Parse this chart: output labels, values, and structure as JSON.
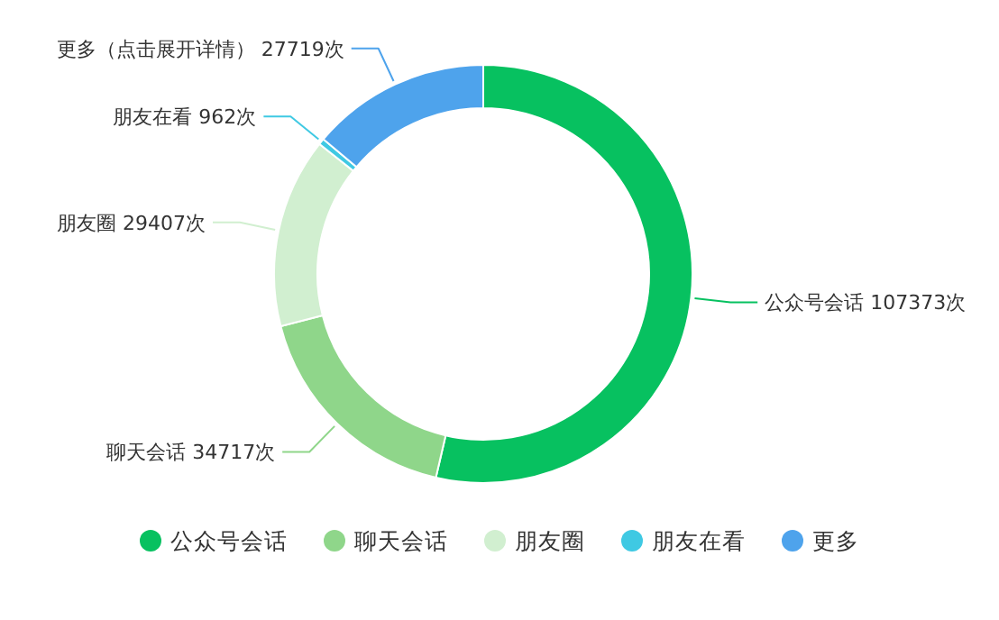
{
  "chart_data": {
    "type": "donut",
    "categories": [
      "公众号会话",
      "聊天会话",
      "朋友圈",
      "朋友在看",
      "更多"
    ],
    "values": [
      107373,
      34717,
      29407,
      962,
      27719
    ],
    "colors": [
      "#07c160",
      "#8fd68a",
      "#d1efd0",
      "#3fc9e3",
      "#4ea3ec"
    ],
    "value_labels": [
      "公众号会话 107373次",
      "聊天会话 34717次",
      "朋友圈 29407次",
      "朋友在看 962次",
      "更多（点击展开详情） 27719次"
    ],
    "legend": "bottom"
  }
}
